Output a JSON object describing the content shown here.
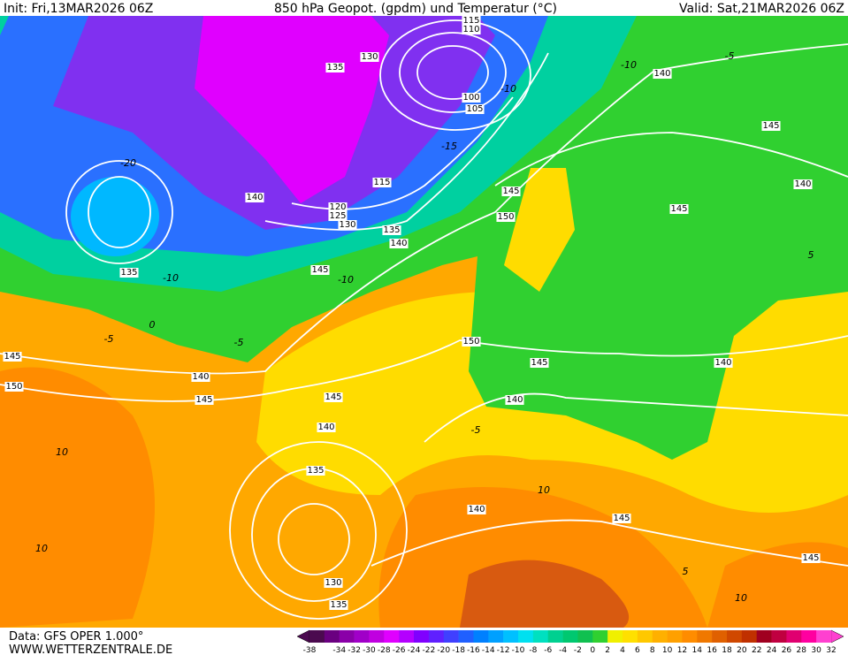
{
  "header": {
    "init": "Init: Fri,13MAR2026 06Z",
    "title": "850 hPa Geopot. (gpdm) und Temperatur (°C)",
    "valid": "Valid: Sat,21MAR2026 06Z"
  },
  "geopotential_labels": [
    "115",
    "110",
    "130",
    "135",
    "140",
    "100",
    "105",
    "145",
    "115",
    "140",
    "140",
    "145",
    "145",
    "120",
    "125",
    "150",
    "130",
    "135",
    "140",
    "145",
    "135",
    "150",
    "145",
    "145",
    "140",
    "140",
    "150",
    "145",
    "145",
    "140",
    "140",
    "135",
    "140",
    "145",
    "145",
    "130",
    "135"
  ],
  "temperature_labels": [
    "-10",
    "-5",
    "-10",
    "-15",
    "-20",
    "-10",
    "-10",
    "-5",
    "-5",
    "0",
    "-5",
    "10",
    "10",
    "10",
    "5",
    "10",
    "5"
  ],
  "footer": {
    "data": "Data: GFS OPER 1.000°",
    "site": "WWW.WETTERZENTRALE.DE"
  },
  "color_scale": {
    "ticks": [
      -38,
      -34,
      -32,
      -30,
      -28,
      -26,
      -24,
      -22,
      -20,
      -18,
      -16,
      -14,
      -12,
      -10,
      -8,
      -6,
      -4,
      -2,
      0,
      2,
      4,
      6,
      8,
      10,
      12,
      14,
      16,
      18,
      20,
      22,
      24,
      26,
      28,
      30,
      32
    ],
    "colors": [
      "#4b0a4f",
      "#6a0080",
      "#8a00a8",
      "#a000c8",
      "#c000e0",
      "#e000ff",
      "#b400ff",
      "#8000ff",
      "#6020ff",
      "#4040ff",
      "#2060ff",
      "#0080ff",
      "#00a0ff",
      "#00c0ff",
      "#00e0f0",
      "#00e0c0",
      "#00d090",
      "#00c870",
      "#10c050",
      "#30d030",
      "#f0f000",
      "#ffe000",
      "#ffc800",
      "#ffb000",
      "#ffa000",
      "#ff8c00",
      "#f07800",
      "#e06000",
      "#d04800",
      "#c03000",
      "#a00020",
      "#c00040",
      "#e00070",
      "#ff00a0",
      "#ff40d0"
    ]
  }
}
